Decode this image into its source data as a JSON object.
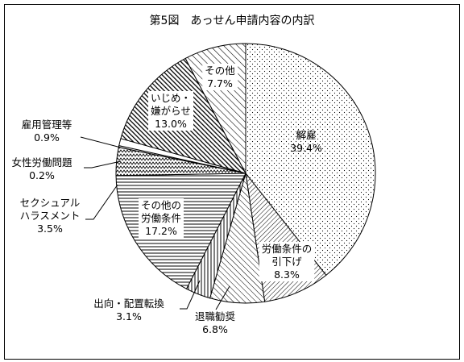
{
  "chart_data": {
    "type": "pie",
    "title": "第5図　あっせん申請内容の内訳",
    "slices": [
      {
        "lines": [
          "解雇"
        ],
        "value_text": "39.4%",
        "value": 39.4
      },
      {
        "lines": [
          "労働条件の",
          "引下げ"
        ],
        "value_text": "8.3%",
        "value": 8.3
      },
      {
        "lines": [
          "退職勧奨"
        ],
        "value_text": "6.8%",
        "value": 6.8
      },
      {
        "lines": [
          "出向・配置転換"
        ],
        "value_text": "3.1%",
        "value": 3.1
      },
      {
        "lines": [
          "その他の",
          "労働条件"
        ],
        "value_text": "17.2%",
        "value": 17.2
      },
      {
        "lines": [
          "セクシュアル",
          "ハラスメント"
        ],
        "value_text": "3.5%",
        "value": 3.5
      },
      {
        "lines": [
          "女性労働問題"
        ],
        "value_text": "0.2%",
        "value": 0.2
      },
      {
        "lines": [
          "雇用管理等"
        ],
        "value_text": "0.9%",
        "value": 0.9
      },
      {
        "lines": [
          "いじめ・",
          "嫌がらせ"
        ],
        "value_text": "13.0%",
        "value": 13.0
      },
      {
        "lines": [
          "その他"
        ],
        "value_text": "7.7%",
        "value": 7.7
      }
    ]
  }
}
